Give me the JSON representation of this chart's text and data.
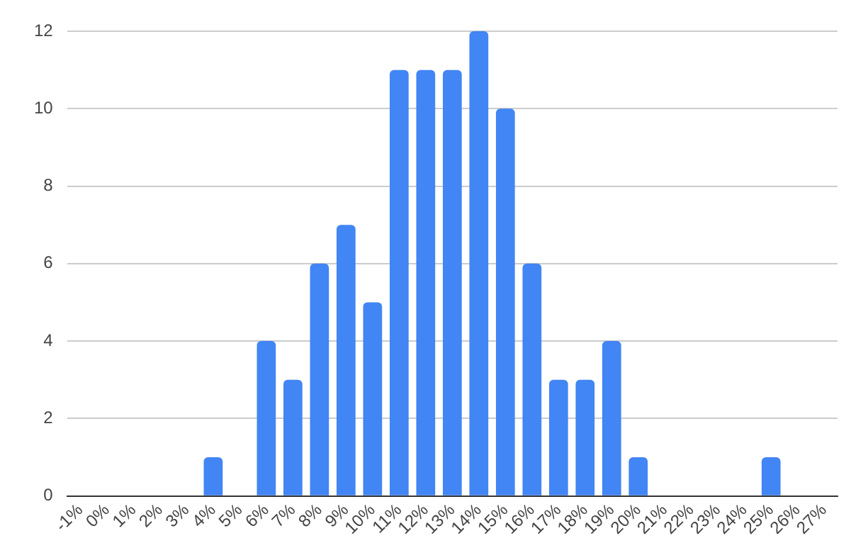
{
  "chart_data": {
    "type": "bar",
    "categories": [
      "-1%",
      "0%",
      "1%",
      "2%",
      "3%",
      "4%",
      "5%",
      "6%",
      "7%",
      "8%",
      "9%",
      "10%",
      "11%",
      "12%",
      "13%",
      "14%",
      "15%",
      "16%",
      "17%",
      "18%",
      "19%",
      "20%",
      "21%",
      "22%",
      "23%",
      "24%",
      "25%",
      "26%",
      "27%"
    ],
    "values": [
      0,
      0,
      0,
      0,
      0,
      1,
      0,
      4,
      3,
      6,
      7,
      5,
      11,
      11,
      11,
      12,
      10,
      6,
      3,
      3,
      4,
      1,
      0,
      0,
      0,
      0,
      1,
      0,
      0
    ],
    "color": "#4285f4",
    "ylim": [
      0,
      12
    ],
    "yticks": [
      0,
      2,
      4,
      6,
      8,
      10,
      12
    ],
    "grid": "y",
    "legend": false
  }
}
